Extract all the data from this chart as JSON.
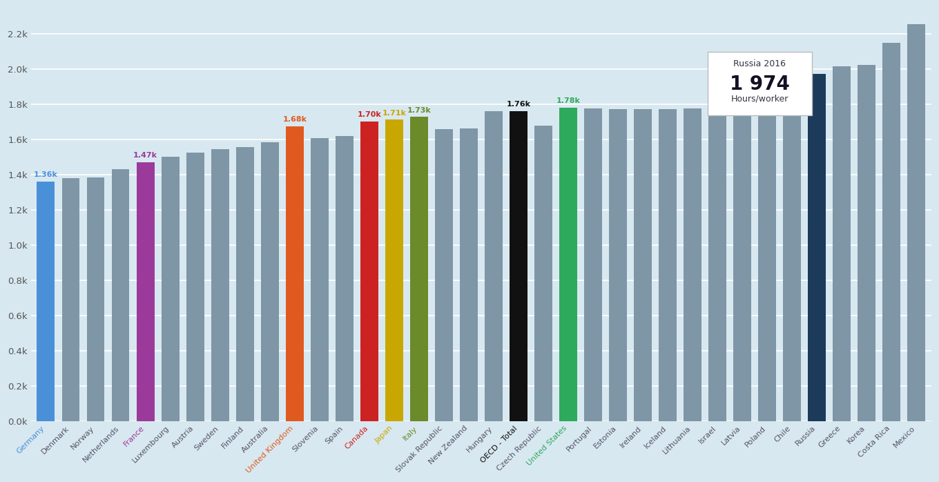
{
  "categories": [
    "Germany",
    "Denmark",
    "Norway",
    "Netherlands",
    "France",
    "Luxembourg",
    "Austria",
    "Sweden",
    "Finland",
    "Australia",
    "United Kingdom",
    "Slovenia",
    "Spain",
    "Canada",
    "Japan",
    "Italy",
    "Slovak Republic",
    "New Zealand",
    "Hungary",
    "OECD - Total",
    "Czech Republic",
    "United States",
    "Portugal",
    "Estonia",
    "Ireland",
    "Iceland",
    "Lithuania",
    "Israel",
    "Latvia",
    "Poland",
    "Chile",
    "Russia",
    "Greece",
    "Korea",
    "Costa Rica",
    "Mexico"
  ],
  "values": [
    1363,
    1382,
    1384,
    1433,
    1472,
    1502,
    1526,
    1545,
    1557,
    1587,
    1676,
    1609,
    1622,
    1703,
    1713,
    1730,
    1661,
    1664,
    1761,
    1763,
    1681,
    1783,
    1776,
    1775,
    1775,
    1775,
    1776,
    1780,
    1795,
    1800,
    1861,
    1974,
    2018,
    2024,
    2149,
    2255
  ],
  "bar_colors": [
    "#4A90D9",
    "#7E96A5",
    "#7E96A5",
    "#7E96A5",
    "#9B3A9B",
    "#7E96A5",
    "#7E96A5",
    "#7E96A5",
    "#7E96A5",
    "#7E96A5",
    "#E05A20",
    "#7E96A5",
    "#7E96A5",
    "#CC2222",
    "#C8A800",
    "#6B8A2A",
    "#7E96A5",
    "#7E96A5",
    "#7E96A5",
    "#111111",
    "#7E96A5",
    "#2EAA5C",
    "#7E96A5",
    "#7E96A5",
    "#7E96A5",
    "#7E96A5",
    "#7E96A5",
    "#7E96A5",
    "#7E96A5",
    "#7E96A5",
    "#7E96A5",
    "#1C3A5A",
    "#7E96A5",
    "#7E96A5",
    "#7E96A5",
    "#7E96A5"
  ],
  "label_colors": {
    "Germany": "#4A90D9",
    "France": "#9B3A9B",
    "United Kingdom": "#E05A20",
    "Canada": "#CC2222",
    "Japan": "#C8A800",
    "Italy": "#6B8A2A",
    "OECD - Total": "#111111",
    "United States": "#2EAA5C"
  },
  "annotated_bars": {
    "Germany": {
      "label": "1.36k",
      "color": "#4A90D9"
    },
    "France": {
      "label": "1.47k",
      "color": "#9B3A9B"
    },
    "United Kingdom": {
      "label": "1.68k",
      "color": "#E05A20"
    },
    "Canada": {
      "label": "1.70k",
      "color": "#CC2222"
    },
    "Japan": {
      "label": "1.71k",
      "color": "#C8A800"
    },
    "Italy": {
      "label": "1.73k",
      "color": "#6B8A2A"
    },
    "OECD - Total": {
      "label": "1.76k",
      "color": "#111111"
    },
    "United States": {
      "label": "1.78k",
      "color": "#2EAA5C"
    }
  },
  "tooltip": {
    "label_line1": "Russia 2016",
    "label_line2": "1 974",
    "label_line3": "Hours/worker"
  },
  "ylim": [
    0,
    2350
  ],
  "yticks": [
    0,
    200,
    400,
    600,
    800,
    1000,
    1200,
    1400,
    1600,
    1800,
    2000,
    2200
  ],
  "ytick_labels": [
    "0.0k",
    "0.2k",
    "0.4k",
    "0.6k",
    "0.8k",
    "1.0k",
    "1.2k",
    "1.4k",
    "1.6k",
    "1.8k",
    "2.0k",
    "2.2k"
  ],
  "background_color": "#D8E8F0",
  "grid_color": "#FFFFFF",
  "bar_width": 0.72
}
